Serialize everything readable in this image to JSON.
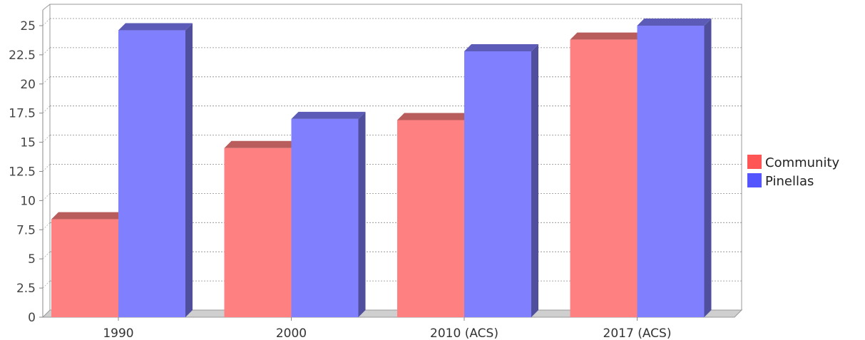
{
  "chart_data": {
    "type": "bar",
    "categories": [
      "1990",
      "2000",
      "2010 (ACS)",
      "2017 (ACS)"
    ],
    "series": [
      {
        "name": "Community",
        "values": [
          8.4,
          14.5,
          16.9,
          23.8
        ],
        "color": "#ff8080",
        "legend_color": "#ff5555"
      },
      {
        "name": "Pinellas",
        "values": [
          24.6,
          17.0,
          22.8,
          25.0
        ],
        "color": "#8080ff",
        "legend_color": "#5555ff"
      }
    ],
    "ylim": [
      0,
      25
    ],
    "yticks": [
      "0",
      "2.5",
      "5",
      "7.5",
      "10",
      "12.5",
      "15",
      "17.5",
      "20",
      "22.5",
      "25"
    ],
    "grid": true,
    "legend_position": "right",
    "three_d": true,
    "title": "",
    "xlabel": "",
    "ylabel": ""
  }
}
